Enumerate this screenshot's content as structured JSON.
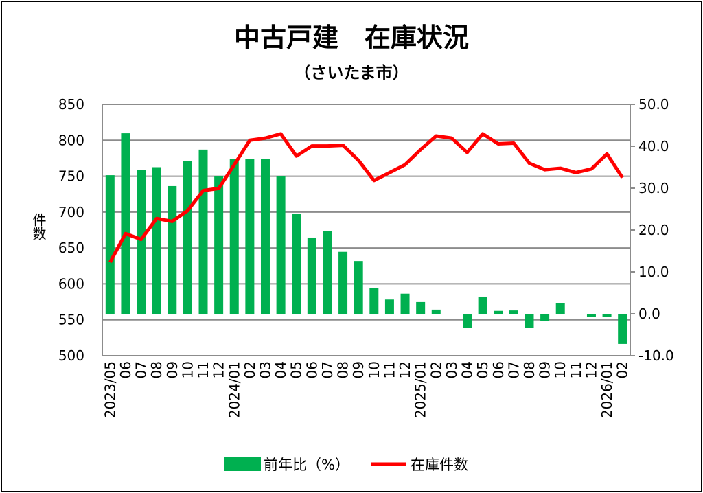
{
  "chart_data": {
    "type": "bar+line",
    "title": "中古戸建　在庫状況",
    "subtitle": "（さいたま市）",
    "ylabel": "件数",
    "ylim_left": [
      500,
      850
    ],
    "yticks_left": [
      "500",
      "550",
      "600",
      "650",
      "700",
      "750",
      "800",
      "850"
    ],
    "ylim_right": [
      -10,
      50
    ],
    "yticks_right": [
      "-10.0",
      "0.0",
      "10.0",
      "20.0",
      "30.0",
      "40.0",
      "50.0"
    ],
    "grid": true,
    "legend_position": "bottom",
    "categories": [
      "2023/05",
      "06",
      "07",
      "08",
      "09",
      "10",
      "11",
      "12",
      "2024/01",
      "02",
      "03",
      "04",
      "05",
      "06",
      "07",
      "08",
      "09",
      "10",
      "11",
      "12",
      "2025/01",
      "02",
      "03",
      "04",
      "05",
      "06",
      "07",
      "08",
      "09",
      "10",
      "11",
      "12",
      "2026/01",
      "02"
    ],
    "series": [
      {
        "name": "前年比（%）",
        "type": "bar",
        "axis": "right",
        "color": "#00B050",
        "values": [
          33.1,
          43.1,
          34.3,
          35.0,
          30.5,
          36.4,
          39.2,
          32.8,
          36.9,
          36.9,
          36.9,
          32.8,
          23.8,
          18.2,
          19.8,
          14.8,
          12.6,
          6.1,
          3.4,
          4.8,
          2.8,
          1.0,
          0.0,
          -3.4,
          4.1,
          0.7,
          0.8,
          -3.3,
          -1.8,
          2.5,
          0.0,
          -0.8,
          -0.8,
          -7.2
        ]
      },
      {
        "name": "在庫件数",
        "type": "line",
        "axis": "left",
        "color": "#FF0000",
        "values": [
          630,
          670,
          662,
          691,
          687,
          702,
          730,
          733,
          766,
          800,
          803,
          809,
          778,
          792,
          792,
          793,
          772,
          744,
          755,
          766,
          787,
          806,
          803,
          783,
          809,
          795,
          796,
          768,
          759,
          761,
          755,
          760,
          781,
          748
        ]
      }
    ]
  }
}
